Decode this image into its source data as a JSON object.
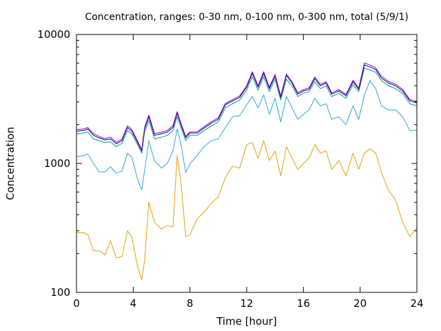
{
  "chart_data": {
    "type": "line",
    "title": "Concentration, ranges: 0-30 nm, 0-100 nm, 0-300 nm, total (5/9/1)",
    "xlabel": "Time [hour]",
    "ylabel": "Concentration",
    "xlim": [
      0,
      24
    ],
    "ylim": [
      100,
      10000
    ],
    "yscale": "log",
    "grid": false,
    "legend": "none",
    "x_ticks": [
      0,
      4,
      8,
      12,
      16,
      20,
      24
    ],
    "x_tick_labels": [
      "0",
      "4",
      "8",
      "12",
      "16",
      "20",
      "24"
    ],
    "y_ticks": [
      100,
      1000,
      10000
    ],
    "y_tick_labels": [
      "100",
      "1000",
      "10000"
    ],
    "y_minor_ticks": [
      200,
      300,
      400,
      500,
      600,
      700,
      800,
      900,
      2000,
      3000,
      4000,
      5000,
      6000,
      7000,
      8000,
      9000
    ],
    "x": [
      0,
      0.5,
      0.8,
      1.2,
      1.6,
      2.0,
      2.4,
      2.8,
      3.2,
      3.6,
      3.9,
      4.3,
      4.6,
      4.8,
      5.1,
      5.5,
      6.0,
      6.4,
      6.8,
      7.1,
      7.4,
      7.7,
      8.0,
      8.5,
      9.0,
      9.5,
      10.0,
      10.5,
      11.0,
      11.5,
      12.0,
      12.4,
      12.8,
      13.2,
      13.6,
      14.0,
      14.4,
      14.8,
      15.2,
      15.6,
      16.0,
      16.4,
      16.8,
      17.2,
      17.6,
      18.0,
      18.5,
      19.0,
      19.5,
      19.9,
      20.3,
      20.7,
      21.1,
      21.5,
      22.0,
      22.5,
      23.0,
      23.5,
      24.0
    ],
    "series": [
      {
        "color": "#e5a000",
        "values": [
          290,
          290,
          280,
          210,
          210,
          195,
          250,
          185,
          190,
          300,
          270,
          160,
          125,
          175,
          500,
          350,
          310,
          330,
          320,
          1150,
          650,
          270,
          280,
          370,
          420,
          490,
          550,
          780,
          950,
          920,
          1400,
          1450,
          1100,
          1500,
          1050,
          1250,
          800,
          1350,
          1100,
          900,
          1000,
          1100,
          1400,
          1200,
          1250,
          900,
          1050,
          800,
          1200,
          900,
          1200,
          1300,
          1200,
          850,
          620,
          520,
          350,
          270,
          320
        ]
      },
      {
        "color": "#2aa7d5",
        "values": [
          1130,
          1150,
          1180,
          1000,
          860,
          860,
          940,
          840,
          870,
          1200,
          1120,
          760,
          620,
          880,
          1500,
          1050,
          920,
          1000,
          1250,
          1850,
          1350,
          850,
          990,
          1150,
          1350,
          1500,
          1550,
          1900,
          2300,
          2350,
          2850,
          3300,
          2700,
          3400,
          2400,
          3200,
          2100,
          3300,
          2700,
          2200,
          2400,
          2600,
          3200,
          2800,
          2900,
          2200,
          2300,
          2000,
          2800,
          2200,
          3400,
          4400,
          3800,
          2800,
          2600,
          2600,
          2300,
          1800,
          1800
        ]
      },
      {
        "color": "#009e73",
        "values": [
          1700,
          1720,
          1750,
          1550,
          1500,
          1450,
          1470,
          1350,
          1430,
          1800,
          1700,
          1400,
          1200,
          1750,
          2150,
          1550,
          1600,
          1650,
          1800,
          2300,
          1850,
          1500,
          1650,
          1650,
          1800,
          1950,
          2100,
          2700,
          2900,
          3100,
          3700,
          4700,
          3700,
          4700,
          3600,
          4500,
          3100,
          4500,
          4000,
          3300,
          3500,
          3600,
          4300,
          3800,
          4000,
          3300,
          3500,
          3200,
          4100,
          3600,
          5500,
          5300,
          5100,
          4400,
          4000,
          3800,
          3500,
          2900,
          2800
        ]
      },
      {
        "color": "#000080",
        "values": [
          1780,
          1800,
          1850,
          1650,
          1580,
          1520,
          1550,
          1420,
          1500,
          1900,
          1780,
          1460,
          1250,
          1850,
          2300,
          1650,
          1700,
          1750,
          1900,
          2450,
          1950,
          1580,
          1720,
          1720,
          1880,
          2050,
          2200,
          2850,
          3050,
          3250,
          3900,
          5000,
          3900,
          5000,
          3800,
          4750,
          3250,
          4800,
          4200,
          3450,
          3650,
          3750,
          4550,
          4000,
          4200,
          3450,
          3650,
          3350,
          4300,
          3750,
          5800,
          5600,
          5350,
          4600,
          4200,
          4000,
          3650,
          3050,
          2950
        ]
      },
      {
        "color": "#9400d3",
        "values": [
          1830,
          1850,
          1900,
          1700,
          1620,
          1560,
          1600,
          1460,
          1540,
          1960,
          1830,
          1500,
          1280,
          1900,
          2380,
          1700,
          1750,
          1800,
          1960,
          2520,
          2000,
          1620,
          1760,
          1760,
          1930,
          2100,
          2260,
          2920,
          3120,
          3330,
          4000,
          5150,
          4000,
          5150,
          3900,
          4900,
          3330,
          4950,
          4300,
          3530,
          3740,
          3850,
          4680,
          4100,
          4300,
          3530,
          3740,
          3430,
          4420,
          3850,
          6000,
          5800,
          5500,
          4750,
          4320,
          4120,
          3750,
          3130,
          3030
        ]
      }
    ]
  }
}
